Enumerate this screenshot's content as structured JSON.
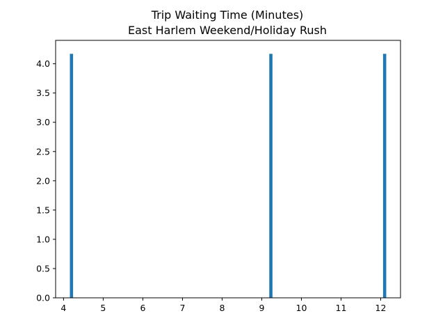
{
  "chart_data": {
    "type": "bar",
    "title": "Trip Waiting Time (Minutes)",
    "subtitle": "East Harlem Weekend/Holiday Rush",
    "xlabel": "",
    "ylabel": "",
    "xlim": [
      3.8,
      12.5
    ],
    "ylim": [
      0,
      4.4
    ],
    "x_ticks": [
      4,
      5,
      6,
      7,
      8,
      9,
      10,
      11,
      12
    ],
    "y_ticks": [
      0.0,
      0.5,
      1.0,
      1.5,
      2.0,
      2.5,
      3.0,
      3.5,
      4.0
    ],
    "bars": [
      {
        "x": 4.2,
        "value": 4.17
      },
      {
        "x": 9.23,
        "value": 4.17
      },
      {
        "x": 12.1,
        "value": 4.17
      }
    ],
    "bar_width": 0.08,
    "bar_color": "#1f77b4",
    "grid": false,
    "legend": "none"
  }
}
